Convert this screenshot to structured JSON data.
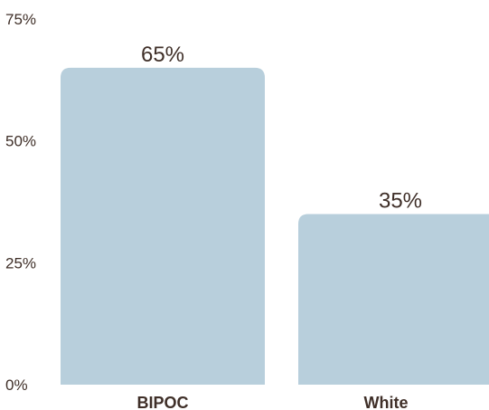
{
  "chart_data": {
    "type": "bar",
    "categories": [
      "BIPOC",
      "White"
    ],
    "values": [
      65,
      35
    ],
    "data_labels": [
      "65%",
      "35%"
    ],
    "yticks": [
      0,
      25,
      50,
      75
    ],
    "ytick_labels": [
      "0%",
      "25%",
      "50%",
      "75%"
    ],
    "ylim": [
      0,
      75
    ],
    "title": "",
    "xlabel": "",
    "ylabel": "",
    "grid": false,
    "legend": "none",
    "bar_color": "#b8cfdc",
    "text_color": "#3f2f28"
  }
}
